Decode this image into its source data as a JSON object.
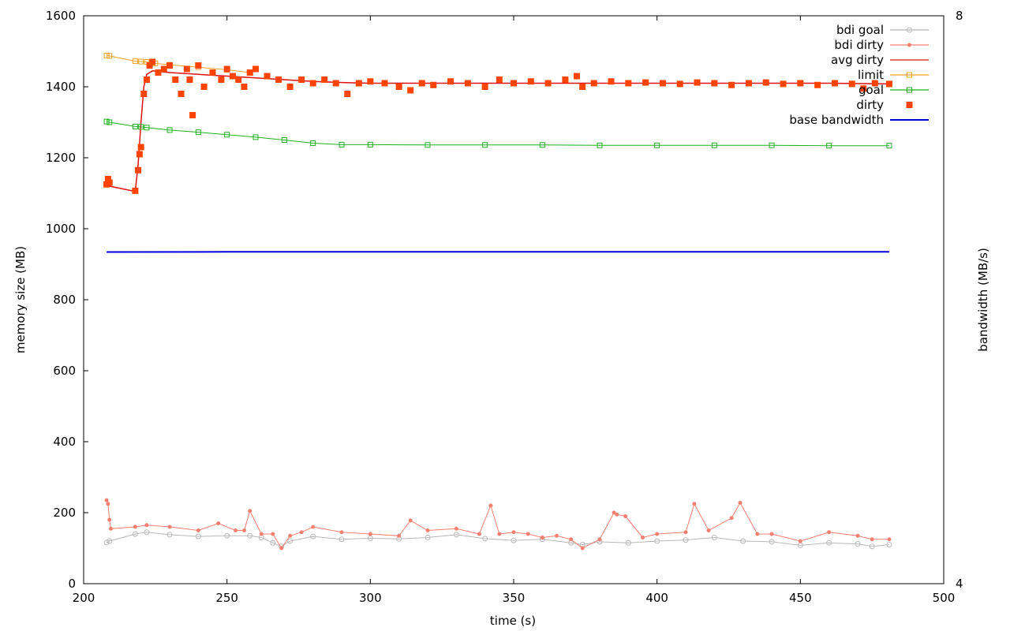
{
  "chart_data": {
    "type": "line",
    "title": "",
    "xlabel": "time (s)",
    "ylabel": "memory size (MB)",
    "y2label": "bandwidth (MB/s)",
    "xlim": [
      200,
      500
    ],
    "ylim": [
      0,
      1600
    ],
    "y2lim": [
      4,
      8
    ],
    "x_ticks": [
      200,
      250,
      300,
      350,
      400,
      450,
      500
    ],
    "y_ticks": [
      0,
      200,
      400,
      600,
      800,
      1000,
      1200,
      1400,
      1600
    ],
    "y2_ticks": [
      4,
      8
    ],
    "grid": false,
    "legend_position": "top-right",
    "series": [
      {
        "name": "bdi goal",
        "color": "#b8b8b8",
        "style": "linespoints-circle",
        "x": [
          208,
          209,
          218,
          222,
          230,
          240,
          250,
          258,
          262,
          266,
          269,
          272,
          280,
          290,
          300,
          310,
          320,
          330,
          340,
          350,
          360,
          370,
          374,
          380,
          390,
          400,
          410,
          420,
          430,
          440,
          450,
          460,
          470,
          475,
          481
        ],
        "y": [
          116,
          120,
          140,
          145,
          138,
          133,
          135,
          135,
          130,
          115,
          105,
          120,
          133,
          125,
          128,
          126,
          130,
          138,
          127,
          122,
          125,
          115,
          110,
          118,
          115,
          120,
          123,
          130,
          120,
          118,
          108,
          115,
          112,
          105,
          110
        ]
      },
      {
        "name": "bdi dirty",
        "color": "#f58070",
        "style": "linespoints-dot",
        "x": [
          208,
          208.5,
          209,
          209.5,
          218,
          222,
          230,
          240,
          247,
          253,
          256,
          258,
          262,
          266,
          269,
          272,
          276,
          280,
          290,
          300,
          310,
          314,
          320,
          330,
          338,
          342,
          345,
          350,
          355,
          360,
          365,
          370,
          374,
          380,
          385,
          386,
          389,
          395,
          400,
          410,
          413,
          418,
          426,
          429,
          435,
          440,
          450,
          460,
          470,
          475,
          481
        ],
        "y": [
          235,
          225,
          180,
          155,
          160,
          165,
          160,
          150,
          170,
          150,
          150,
          205,
          140,
          140,
          100,
          135,
          145,
          160,
          145,
          140,
          135,
          178,
          150,
          155,
          140,
          220,
          140,
          145,
          140,
          130,
          135,
          125,
          100,
          125,
          200,
          195,
          190,
          130,
          140,
          145,
          225,
          150,
          185,
          228,
          140,
          140,
          120,
          145,
          135,
          125,
          125
        ]
      },
      {
        "name": "avg dirty",
        "color": "#e01010",
        "style": "line",
        "x": [
          208,
          209,
          218,
          219,
          220,
          221,
          222,
          224,
          230,
          240,
          250,
          260,
          270,
          280,
          290,
          300,
          320,
          340,
          360,
          380,
          400,
          420,
          440,
          460,
          481
        ],
        "y": [
          1123,
          1120,
          1105,
          1180,
          1300,
          1400,
          1435,
          1445,
          1440,
          1435,
          1430,
          1425,
          1420,
          1415,
          1412,
          1410,
          1410,
          1410,
          1410,
          1410,
          1410,
          1410,
          1410,
          1410,
          1408
        ]
      },
      {
        "name": "limit",
        "color": "#f0a020",
        "style": "linespoints-square",
        "x": [
          208,
          209,
          218,
          220,
          222,
          225,
          230,
          240,
          250,
          258
        ],
        "y": [
          1488,
          1487,
          1472,
          1471,
          1470,
          1466,
          1462,
          1455,
          1448,
          1440
        ]
      },
      {
        "name": "goal",
        "color": "#20b020",
        "style": "linespoints-square",
        "x": [
          208,
          209,
          218,
          220,
          222,
          230,
          240,
          250,
          260,
          270,
          280,
          290,
          300,
          320,
          340,
          360,
          380,
          400,
          420,
          440,
          460,
          481
        ],
        "y": [
          1302,
          1300,
          1288,
          1287,
          1285,
          1278,
          1272,
          1265,
          1258,
          1250,
          1241,
          1237,
          1237,
          1236,
          1236,
          1236,
          1235,
          1235,
          1235,
          1235,
          1234,
          1234
        ]
      },
      {
        "name": "dirty",
        "color": "#ff4400",
        "style": "points-square",
        "x": [
          208,
          208.5,
          209,
          218,
          219,
          219.5,
          220,
          221,
          222,
          223,
          224,
          226,
          228,
          230,
          232,
          234,
          236,
          237,
          238,
          240,
          242,
          245,
          248,
          250,
          252,
          254,
          256,
          258,
          260,
          264,
          268,
          272,
          276,
          280,
          284,
          288,
          292,
          296,
          300,
          305,
          310,
          314,
          318,
          322,
          328,
          334,
          340,
          345,
          350,
          356,
          362,
          368,
          372,
          374,
          378,
          384,
          390,
          396,
          402,
          408,
          414,
          420,
          426,
          432,
          438,
          444,
          450,
          456,
          462,
          468,
          472,
          476,
          481
        ],
        "y": [
          1125,
          1140,
          1130,
          1107,
          1165,
          1210,
          1230,
          1380,
          1420,
          1460,
          1470,
          1440,
          1450,
          1460,
          1420,
          1380,
          1450,
          1420,
          1320,
          1460,
          1400,
          1440,
          1420,
          1450,
          1430,
          1420,
          1400,
          1440,
          1450,
          1430,
          1420,
          1400,
          1420,
          1410,
          1420,
          1410,
          1380,
          1410,
          1415,
          1410,
          1400,
          1390,
          1410,
          1405,
          1415,
          1410,
          1400,
          1420,
          1410,
          1415,
          1410,
          1420,
          1430,
          1400,
          1410,
          1415,
          1410,
          1412,
          1410,
          1408,
          1412,
          1410,
          1405,
          1410,
          1412,
          1408,
          1410,
          1405,
          1410,
          1408,
          1395,
          1410,
          1408
        ]
      },
      {
        "name": "base bandwidth",
        "color": "#0000dd",
        "style": "line",
        "axis": "y2",
        "x": [
          208,
          250,
          300,
          350,
          400,
          450,
          481
        ],
        "y": [
          6.336,
          6.337,
          6.337,
          6.338,
          6.338,
          6.338,
          6.338
        ]
      }
    ]
  }
}
